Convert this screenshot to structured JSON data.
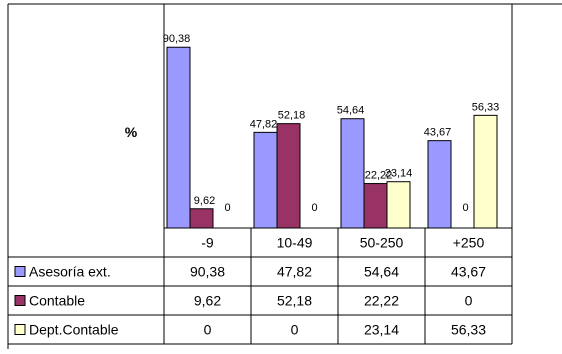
{
  "chart_data": {
    "type": "bar",
    "ylabel": "%",
    "categories": [
      "-9",
      "10-49",
      "50-250",
      "+250"
    ],
    "series": [
      {
        "name": "Asesoría ext.",
        "values": [
          90.38,
          47.82,
          54.64,
          43.67
        ],
        "labels": [
          "90,38",
          "47,82",
          "54,64",
          "43,67"
        ],
        "color": "#9999FF"
      },
      {
        "name": "Contable",
        "values": [
          9.62,
          52.18,
          22.22,
          0
        ],
        "labels": [
          "9,62",
          "52,18",
          "22,22",
          "0"
        ],
        "color": "#993366"
      },
      {
        "name": "Dept.Contable",
        "values": [
          0,
          0,
          23.14,
          56.33
        ],
        "labels": [
          "0",
          "0",
          "23,14",
          "56,33"
        ],
        "color": "#FFFFCC"
      }
    ],
    "ylim": [
      0,
      100
    ],
    "grid": false,
    "legend": "data-table",
    "data_table": true
  }
}
